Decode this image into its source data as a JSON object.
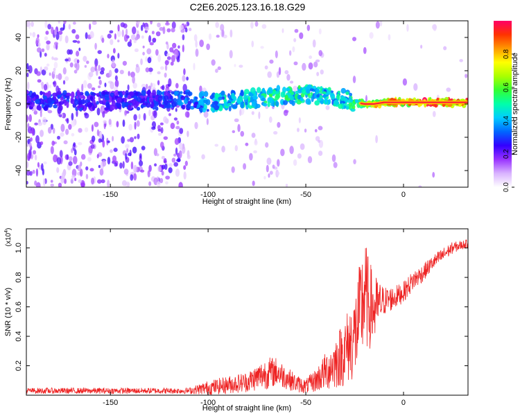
{
  "title": "C2E6.2025.123.16.18.G29",
  "chart_data": [
    {
      "type": "heatmap",
      "xlabel": "Height of straight line (km)",
      "ylabel": "Frequency (Hz)",
      "xlim": [
        -193,
        33
      ],
      "ylim": [
        -50,
        50
      ],
      "xticks": [
        -150,
        -100,
        -50,
        0
      ],
      "yticks": [
        -40,
        -20,
        0,
        20,
        40
      ],
      "colorbar": {
        "label": "Normalized spectral amplitude",
        "range": [
          0,
          1
        ],
        "ticks": [
          "0.0",
          "0.2",
          "0.4",
          "0.6",
          "0.8"
        ],
        "colors": [
          "#ffffff",
          "#d9b3ff",
          "#9933ff",
          "#3300ff",
          "#0066ff",
          "#00ccff",
          "#00ffaa",
          "#33ff33",
          "#aaff00",
          "#ffff00",
          "#ff9900",
          "#ff3300",
          "#ff0066"
        ]
      },
      "ridge": {
        "x": [
          -190,
          -170,
          -150,
          -130,
          -110,
          -100,
          -90,
          -80,
          -70,
          -60,
          -50,
          -40,
          -30,
          -25,
          -20,
          -15,
          -10,
          0,
          10,
          20,
          33
        ],
        "y": [
          2,
          2,
          2,
          2,
          2,
          1,
          2,
          3,
          4,
          5,
          6,
          5,
          3,
          1,
          0,
          0,
          1,
          1,
          1,
          1,
          1
        ],
        "amplitude": [
          0.3,
          0.3,
          0.3,
          0.3,
          0.4,
          0.45,
          0.5,
          0.5,
          0.55,
          0.55,
          0.55,
          0.5,
          0.5,
          0.6,
          0.7,
          0.8,
          0.85,
          0.9,
          0.95,
          0.95,
          0.95
        ]
      },
      "grid": false
    },
    {
      "type": "line",
      "xlabel": "Height of straight line (km)",
      "ylabel": "SNR (10 * v/v)",
      "yscale_label": "(x10",
      "yscale_exp": "4",
      "yscale_close": ")",
      "xlim": [
        -193,
        33
      ],
      "ylim": [
        0,
        1.13
      ],
      "xticks": [
        -150,
        -100,
        -50,
        0
      ],
      "yticks": [
        "0.2",
        "0.4",
        "0.6",
        "0.8",
        "1.0"
      ],
      "color": "#ee2222",
      "envelope": {
        "x": [
          -193,
          -150,
          -110,
          -100,
          -90,
          -80,
          -75,
          -70,
          -65,
          -60,
          -55,
          -50,
          -45,
          -40,
          -35,
          -30,
          -25,
          -22,
          -20,
          -18,
          -15,
          -12,
          -10,
          -5,
          0,
          5,
          10,
          15,
          20,
          25,
          30,
          33
        ],
        "base": [
          0.03,
          0.03,
          0.03,
          0.05,
          0.07,
          0.09,
          0.12,
          0.15,
          0.16,
          0.12,
          0.08,
          0.06,
          0.1,
          0.16,
          0.22,
          0.3,
          0.4,
          0.55,
          0.7,
          0.62,
          0.58,
          0.62,
          0.64,
          0.66,
          0.7,
          0.78,
          0.83,
          0.9,
          0.95,
          1.0,
          1.02,
          1.03
        ],
        "noise": [
          0.02,
          0.02,
          0.02,
          0.05,
          0.06,
          0.07,
          0.09,
          0.11,
          0.1,
          0.08,
          0.06,
          0.05,
          0.08,
          0.13,
          0.18,
          0.24,
          0.3,
          0.38,
          0.4,
          0.32,
          0.25,
          0.15,
          0.1,
          0.08,
          0.07,
          0.07,
          0.06,
          0.05,
          0.05,
          0.04,
          0.03,
          0.03
        ]
      },
      "grid": false
    }
  ]
}
